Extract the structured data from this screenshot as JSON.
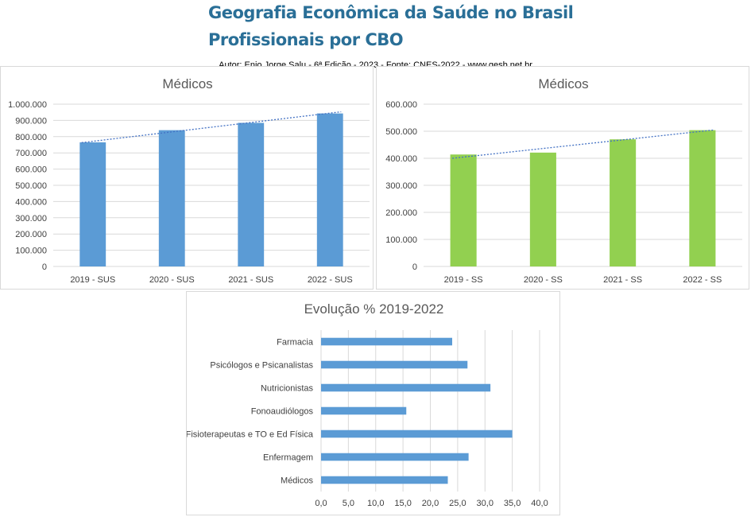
{
  "header": {
    "title_line1": "Geografia Econômica da Saúde no Brasil",
    "title_line2": "Profissionais por CBO",
    "author": "Autor: Enio Jorge Salu - 6ª Edição - 2023 - Fonte: CNES-2022 - www.gesb.net.br"
  },
  "chart_data": [
    {
      "id": "sus",
      "type": "bar",
      "title": "Médicos",
      "categories": [
        "2019 - SUS",
        "2020 - SUS",
        "2021 - SUS",
        "2022 - SUS"
      ],
      "values": [
        765000,
        840000,
        885000,
        943000
      ],
      "ylim": [
        0,
        1000000
      ],
      "yticks": [
        0,
        100000,
        200000,
        300000,
        400000,
        500000,
        600000,
        700000,
        800000,
        900000,
        1000000
      ],
      "color": "#5b9bd5",
      "trendline": true,
      "grid": true,
      "legend": "none"
    },
    {
      "id": "ss",
      "type": "bar",
      "title": "Médicos",
      "categories": [
        "2019 - SS",
        "2020 - SS",
        "2021 - SS",
        "2022 - SS"
      ],
      "values": [
        414000,
        421000,
        470000,
        504000
      ],
      "ylim": [
        0,
        600000
      ],
      "yticks": [
        0,
        100000,
        200000,
        300000,
        400000,
        500000,
        600000
      ],
      "color": "#92d050",
      "trendline": true,
      "grid": true,
      "legend": "none"
    },
    {
      "id": "evolucao",
      "type": "bar",
      "orientation": "horizontal",
      "title": "Evolução % 2019-2022",
      "categories": [
        "Farmacia",
        "Psicólogos e Psicanalistas",
        "Nutricionistas",
        "Fonoaudiólogos",
        "Fisioterapeutas e TO e Ed Física",
        "Enfermagem",
        "Médicos"
      ],
      "values": [
        24.0,
        26.8,
        31.0,
        15.6,
        35.0,
        27.0,
        23.2
      ],
      "xlim": [
        0,
        40
      ],
      "xticks": [
        0,
        5,
        10,
        15,
        20,
        25,
        30,
        35,
        40
      ],
      "color": "#5b9bd5",
      "grid": true,
      "legend": "none"
    }
  ]
}
